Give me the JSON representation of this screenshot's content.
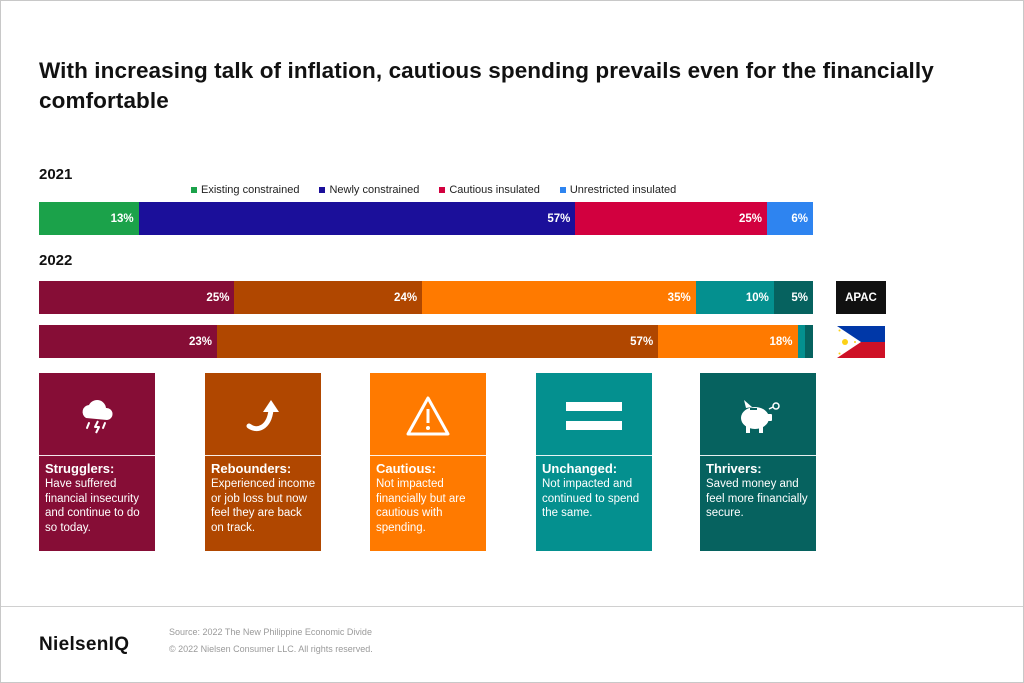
{
  "title": "With increasing talk of inflation, cautious spending prevails even for the financially comfortable",
  "chart_data": [
    {
      "type": "bar",
      "stacked": true,
      "orientation": "horizontal",
      "title": "2021",
      "legend": [
        {
          "name": "Existing constrained",
          "color": "#1ba24a"
        },
        {
          "name": "Newly constrained",
          "color": "#1b0f9a"
        },
        {
          "name": "Cautious insulated",
          "color": "#d2003f"
        },
        {
          "name": "Unrestricted insulated",
          "color": "#2e84f0"
        }
      ],
      "categories": [
        "2021"
      ],
      "series": [
        {
          "name": "Existing constrained",
          "values": [
            13
          ],
          "label": "13%",
          "color": "#1ba24a"
        },
        {
          "name": "Newly constrained",
          "values": [
            57
          ],
          "label": "57%",
          "color": "#1b0f9a"
        },
        {
          "name": "Cautious insulated",
          "values": [
            25
          ],
          "label": "25%",
          "color": "#d2003f"
        },
        {
          "name": "Unrestricted insulated",
          "values": [
            6
          ],
          "label": "6%",
          "color": "#2e84f0"
        }
      ]
    },
    {
      "type": "bar",
      "stacked": true,
      "orientation": "horizontal",
      "title": "2022",
      "categories": [
        "APAC",
        "Philippines"
      ],
      "series": [
        {
          "name": "Strugglers",
          "values": [
            25,
            23
          ],
          "labels": [
            "25%",
            "23%"
          ],
          "color": "#860d36"
        },
        {
          "name": "Rebounders",
          "values": [
            24,
            57
          ],
          "labels": [
            "24%",
            "57%"
          ],
          "color": "#b04700"
        },
        {
          "name": "Cautious",
          "values": [
            35,
            18
          ],
          "labels": [
            "35%",
            "18%"
          ],
          "color": "#ff7a00"
        },
        {
          "name": "Unchanged",
          "values": [
            10,
            1
          ],
          "labels": [
            "10%",
            ""
          ],
          "color": "#04908f"
        },
        {
          "name": "Thrivers",
          "values": [
            5,
            1
          ],
          "labels": [
            "5%",
            ""
          ],
          "color": "#06625f"
        }
      ]
    }
  ],
  "badges": {
    "apac": "APAC"
  },
  "cards": [
    {
      "head": "Strugglers:",
      "body": "Have suffered financial insecurity and continue to do so today.",
      "color": "#860d36",
      "icon": "storm-cloud-icon"
    },
    {
      "head": "Rebounders:",
      "body": "Experienced income or job loss but now feel they are back on track.",
      "color": "#b04700",
      "icon": "curved-arrow-up-icon"
    },
    {
      "head": "Cautious:",
      "body": "Not impacted financially but are cautious with spending.",
      "color": "#ff7a00",
      "icon": "warning-triangle-icon"
    },
    {
      "head": "Unchanged:",
      "body": "Not impacted and continued to spend the same.",
      "color": "#04908f",
      "icon": "equals-icon"
    },
    {
      "head": "Thrivers:",
      "body": "Saved money and feel more financially secure.",
      "color": "#06625f",
      "icon": "piggy-bank-icon"
    }
  ],
  "footer": {
    "logo": "NielsenIQ",
    "source": "Source: 2022 The New Philippine Economic Divide",
    "copyright": "© 2022 Nielsen Consumer LLC. All rights reserved."
  }
}
